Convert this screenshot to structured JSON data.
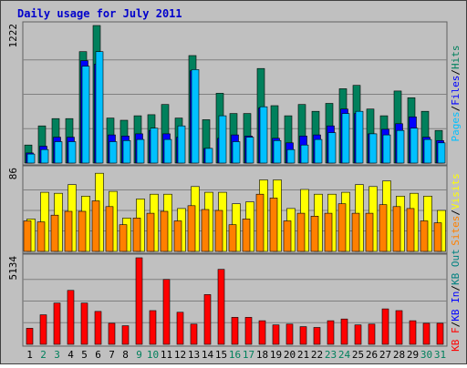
{
  "chart_data": {
    "type": "bar",
    "title": "Daily usage for July 2011",
    "categories": [
      "1",
      "2",
      "3",
      "4",
      "5",
      "6",
      "7",
      "8",
      "9",
      "10",
      "11",
      "12",
      "13",
      "14",
      "15",
      "16",
      "17",
      "18",
      "19",
      "20",
      "21",
      "22",
      "23",
      "24",
      "25",
      "26",
      "27",
      "28",
      "29",
      "30",
      "31"
    ],
    "weekend_days": [
      "2",
      "3",
      "9",
      "10",
      "16",
      "17",
      "23",
      "24",
      "30",
      "31"
    ],
    "colors": {
      "title": "#0000cc",
      "background": "#c0c0c0",
      "frame": "#ffffff",
      "grid": "#808080",
      "hits": "#00805c",
      "files": "#0000ff",
      "pages": "#00c0ff",
      "visits": "#ffff00",
      "sites": "#ff8000",
      "kbin": "#0000ff",
      "kbout": "#008080",
      "kbf": "#ff0000",
      "weekend_label": "#00805c",
      "weekday_label": "#000000"
    },
    "panels": [
      {
        "id": "hits-files-pages",
        "ymax": 1222,
        "ymax_label": "1222",
        "legend": [
          "Pages",
          "Files",
          "Hits"
        ],
        "series": [
          {
            "name": "Hits",
            "values": [
              160,
              330,
              395,
              395,
              990,
              1222,
              400,
              380,
              420,
              430,
              520,
              400,
              955,
              385,
              620,
              440,
              440,
              840,
              510,
              420,
              520,
              460,
              530,
              660,
              690,
              480,
              420,
              640,
              580,
              460,
              290
            ]
          },
          {
            "name": "Files",
            "values": [
              90,
              150,
              230,
              230,
              910,
              880,
              250,
              240,
              260,
              290,
              260,
              230,
              820,
              130,
              220,
              250,
              240,
              490,
              220,
              180,
              240,
              250,
              330,
              480,
              440,
              260,
              300,
              350,
              410,
              230,
              200
            ]
          },
          {
            "name": "Pages",
            "values": [
              80,
              120,
              190,
              190,
              860,
              990,
              190,
              200,
              210,
              310,
              210,
              330,
              830,
              130,
              420,
              190,
              230,
              500,
              200,
              120,
              160,
              210,
              270,
              440,
              460,
              260,
              250,
              290,
              310,
              210,
              180
            ]
          }
        ]
      },
      {
        "id": "visits-sites",
        "ymax": 86,
        "ymax_label": "86",
        "legend": [
          "Sites",
          "Visits"
        ],
        "series": [
          {
            "name": "Visits",
            "values": [
              34,
              62,
              61,
              70,
              58,
              82,
              63,
              35,
              55,
              60,
              60,
              45,
              68,
              62,
              62,
              50,
              52,
              75,
              75,
              45,
              65,
              60,
              60,
              62,
              70,
              68,
              74,
              58,
              61,
              58,
              43
            ]
          },
          {
            "name": "Sites",
            "values": [
              32,
              31,
              38,
              42,
              42,
              53,
              47,
              28,
              35,
              40,
              42,
              32,
              48,
              44,
              43,
              28,
              34,
              60,
              56,
              32,
              40,
              37,
              40,
              50,
              40,
              40,
              49,
              47,
              45,
              32,
              30
            ]
          }
        ]
      },
      {
        "id": "kb",
        "ymax": 5134,
        "ymax_label": "5134",
        "legend": [
          "KB F",
          "KB In",
          "KB Out"
        ],
        "series": [
          {
            "name": "KB F",
            "values": [
              950,
              1750,
              2450,
              3200,
              2450,
              1950,
              1250,
              1100,
              5134,
              2000,
              3850,
              1900,
              1200,
              2950,
              4450,
              1600,
              1600,
              1400,
              1150,
              1200,
              1050,
              1000,
              1400,
              1500,
              1150,
              1200,
              2100,
              2000,
              1400,
              1250,
              1250
            ]
          }
        ]
      }
    ]
  }
}
